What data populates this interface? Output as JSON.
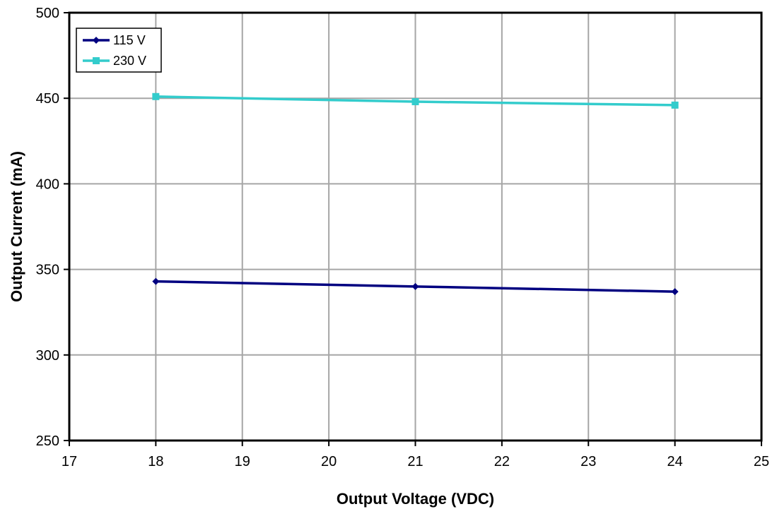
{
  "chart_data": {
    "type": "line",
    "xlabel": "Output Voltage (VDC)",
    "ylabel": "Output Current (mA)",
    "xlim": [
      17,
      25
    ],
    "ylim": [
      250,
      500
    ],
    "xticks": [
      17,
      18,
      19,
      20,
      21,
      22,
      23,
      24,
      25
    ],
    "yticks": [
      250,
      300,
      350,
      400,
      450,
      500
    ],
    "grid": true,
    "legend_position": "top-left",
    "series": [
      {
        "name": "115 V",
        "color": "#000080",
        "marker": "diamond",
        "x": [
          18,
          21,
          24
        ],
        "y": [
          343,
          340,
          337
        ]
      },
      {
        "name": "230 V",
        "color": "#33cccc",
        "marker": "square",
        "x": [
          18,
          21,
          24
        ],
        "y": [
          451,
          448,
          446
        ]
      }
    ]
  }
}
